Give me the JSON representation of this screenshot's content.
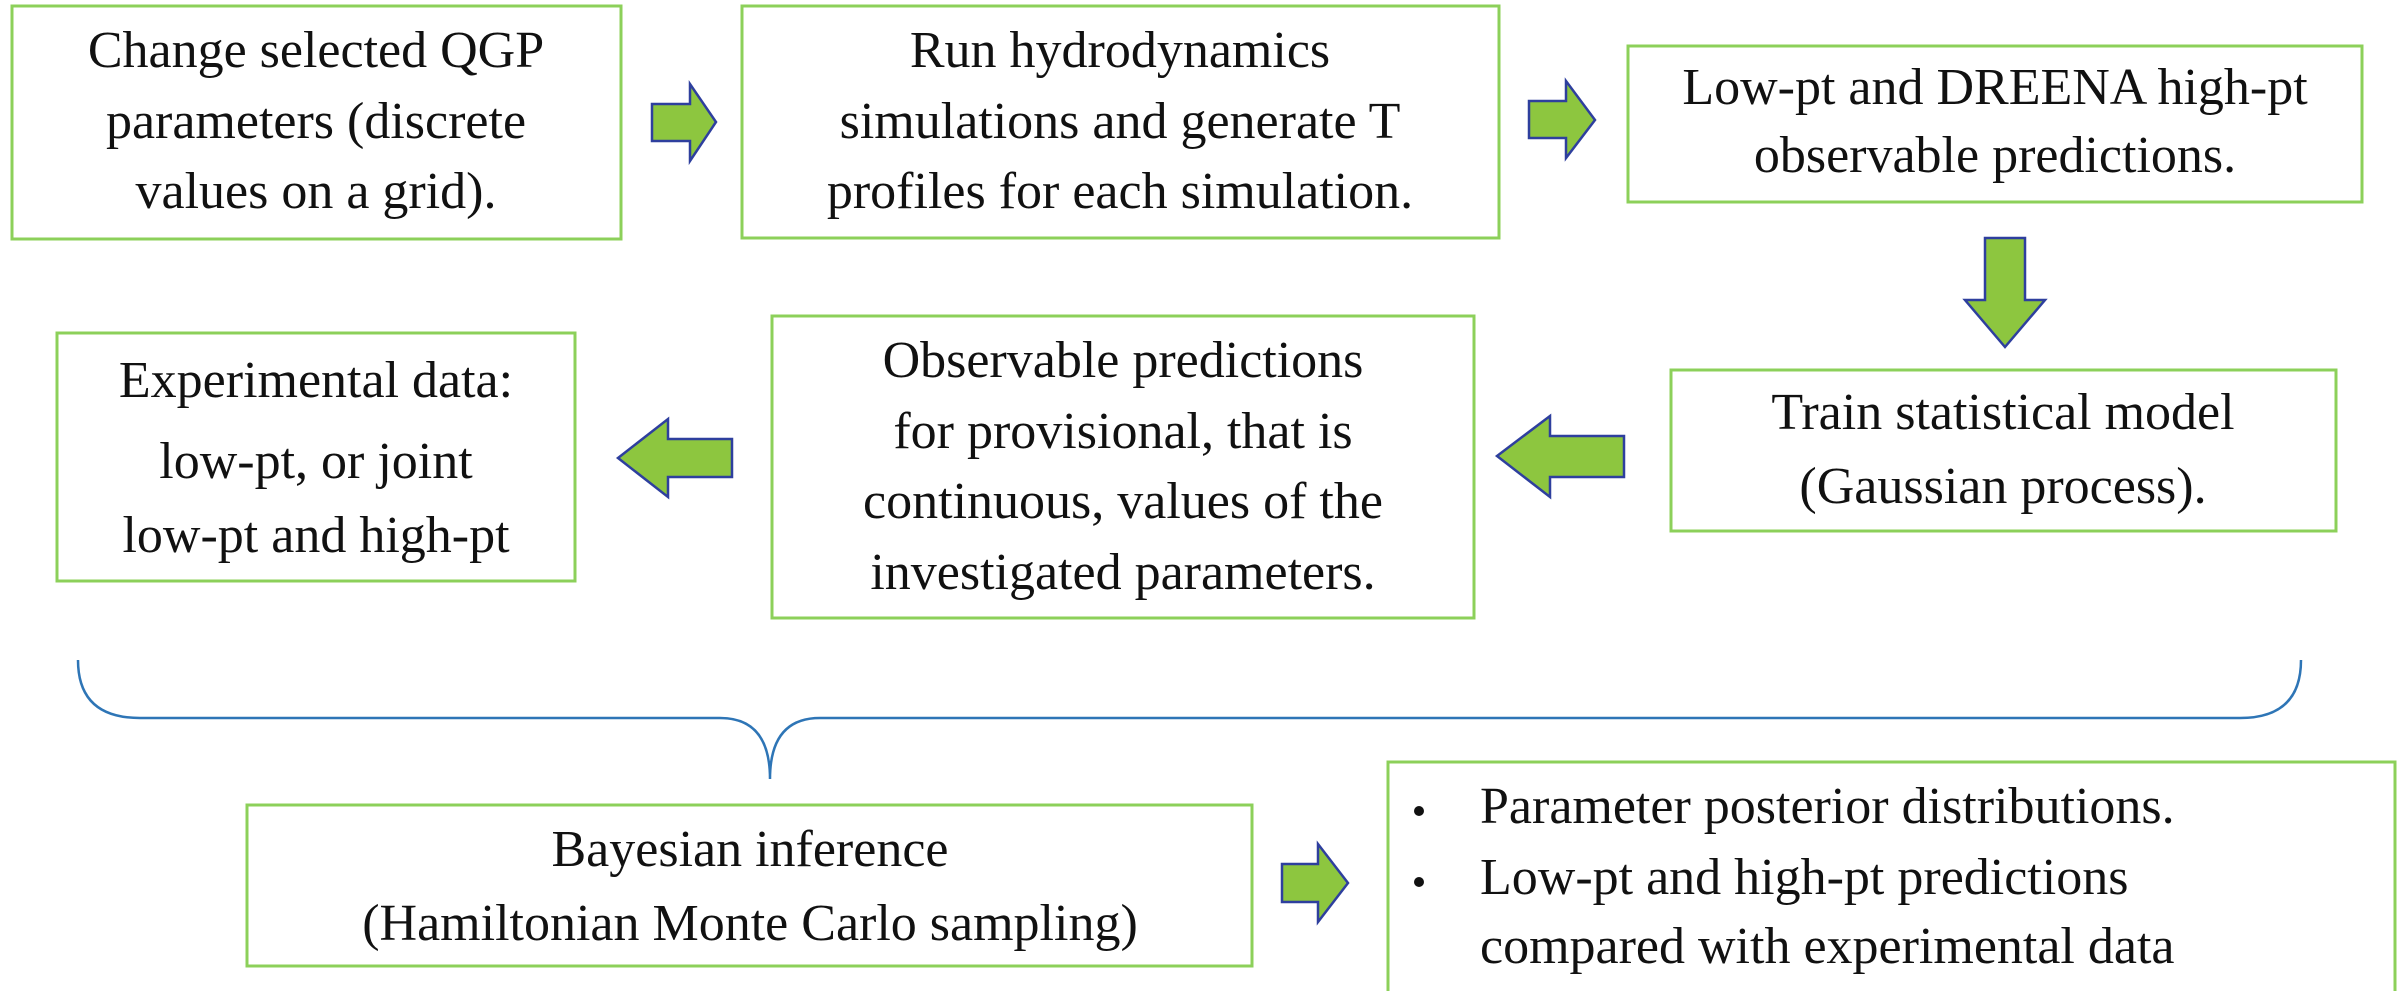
{
  "nodes": [
    {
      "lines": [
        "Change selected QGP",
        "parameters (discrete",
        "values on a grid)."
      ]
    },
    {
      "lines": [
        "Run hydrodynamics",
        "simulations and generate T",
        "profiles for each simulation."
      ]
    },
    {
      "lines": [
        "Low-pt and DREENA high-pt",
        "observable predictions."
      ]
    },
    {
      "lines": [
        "Train statistical model",
        "(Gaussian process)."
      ]
    },
    {
      "lines": [
        "Observable predictions",
        "for provisional, that is",
        "continuous, values of the",
        "investigated parameters."
      ]
    },
    {
      "lines": [
        "Experimental data:",
        "low-pt, or joint",
        "low-pt and high-pt"
      ]
    },
    {
      "lines": [
        "Bayesian inference",
        "(Hamiltonian Monte Carlo sampling)"
      ]
    },
    {
      "items": [
        {
          "lines": [
            "Parameter posterior distributions."
          ]
        },
        {
          "lines": [
            "Low-pt and high-pt predictions",
            "compared with experimental data"
          ]
        }
      ]
    }
  ]
}
